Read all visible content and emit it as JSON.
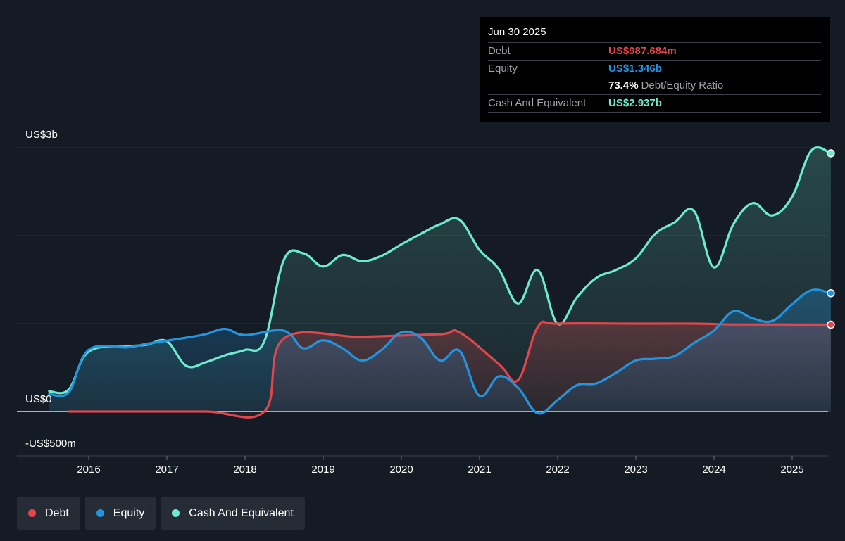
{
  "tooltip": {
    "date": "Jun 30 2025",
    "debt_label": "Debt",
    "debt_value": "US$987.684m",
    "equity_label": "Equity",
    "equity_value": "US$1.346b",
    "ratio_value": "73.4%",
    "ratio_label": "Debt/Equity Ratio",
    "cash_label": "Cash And Equivalent",
    "cash_value": "US$2.937b"
  },
  "y_labels": {
    "top": "US$3b",
    "zero": "US$0",
    "bottom": "-US$500m"
  },
  "legend": [
    {
      "label": "Debt",
      "color": "#e0464c"
    },
    {
      "label": "Equity",
      "color": "#2394df"
    },
    {
      "label": "Cash And Equivalent",
      "color": "#6cebd0"
    }
  ],
  "chart_data": {
    "type": "area",
    "x_ticks": [
      "2016",
      "2017",
      "2018",
      "2019",
      "2020",
      "2021",
      "2022",
      "2023",
      "2024",
      "2025"
    ],
    "y_range": [
      -500,
      3000
    ],
    "y_unit": "US$ m",
    "grid": true,
    "legend_position": "bottom-left",
    "series": [
      {
        "name": "Debt",
        "color": "#e0464c",
        "points": [
          [
            "2015-10-01",
            0
          ],
          [
            "2016-06-30",
            0
          ],
          [
            "2017-06-30",
            0
          ],
          [
            "2018-03-31",
            0
          ],
          [
            "2018-06-30",
            830
          ],
          [
            "2019-06-30",
            850
          ],
          [
            "2020-06-30",
            880
          ],
          [
            "2020-09-30",
            900
          ],
          [
            "2021-03-31",
            540
          ],
          [
            "2021-06-30",
            360
          ],
          [
            "2021-09-30",
            960
          ],
          [
            "2021-12-31",
            1000
          ],
          [
            "2022-12-31",
            1000
          ],
          [
            "2023-09-30",
            1000
          ],
          [
            "2024-03-31",
            990
          ],
          [
            "2024-09-30",
            990
          ],
          [
            "2025-06-30",
            988
          ]
        ]
      },
      {
        "name": "Equity",
        "color": "#2394df",
        "points": [
          [
            "2015-06-30",
            200
          ],
          [
            "2015-09-30",
            220
          ],
          [
            "2015-12-31",
            700
          ],
          [
            "2016-06-30",
            730
          ],
          [
            "2016-09-30",
            770
          ],
          [
            "2017-03-31",
            840
          ],
          [
            "2017-06-30",
            880
          ],
          [
            "2017-09-30",
            940
          ],
          [
            "2017-12-31",
            870
          ],
          [
            "2018-06-30",
            920
          ],
          [
            "2018-09-30",
            720
          ],
          [
            "2018-12-31",
            810
          ],
          [
            "2019-03-31",
            720
          ],
          [
            "2019-06-30",
            580
          ],
          [
            "2019-09-30",
            700
          ],
          [
            "2019-12-31",
            900
          ],
          [
            "2020-03-31",
            840
          ],
          [
            "2020-06-30",
            580
          ],
          [
            "2020-09-30",
            690
          ],
          [
            "2020-12-31",
            180
          ],
          [
            "2021-03-31",
            400
          ],
          [
            "2021-06-30",
            270
          ],
          [
            "2021-09-30",
            -20
          ],
          [
            "2021-12-31",
            130
          ],
          [
            "2022-03-31",
            300
          ],
          [
            "2022-06-30",
            320
          ],
          [
            "2022-09-30",
            440
          ],
          [
            "2022-12-31",
            580
          ],
          [
            "2023-03-31",
            600
          ],
          [
            "2023-06-30",
            630
          ],
          [
            "2023-09-30",
            780
          ],
          [
            "2023-12-31",
            920
          ],
          [
            "2024-03-31",
            1140
          ],
          [
            "2024-06-30",
            1060
          ],
          [
            "2024-09-30",
            1030
          ],
          [
            "2024-12-31",
            1220
          ],
          [
            "2025-03-31",
            1380
          ],
          [
            "2025-06-30",
            1346
          ]
        ]
      },
      {
        "name": "Cash And Equivalent",
        "color": "#6cebd0",
        "points": [
          [
            "2015-06-30",
            230
          ],
          [
            "2015-09-30",
            250
          ],
          [
            "2015-12-31",
            680
          ],
          [
            "2016-06-30",
            740
          ],
          [
            "2016-09-30",
            760
          ],
          [
            "2016-12-31",
            800
          ],
          [
            "2017-03-31",
            520
          ],
          [
            "2017-06-30",
            560
          ],
          [
            "2017-09-30",
            640
          ],
          [
            "2017-12-31",
            700
          ],
          [
            "2018-03-31",
            800
          ],
          [
            "2018-06-30",
            1720
          ],
          [
            "2018-09-30",
            1800
          ],
          [
            "2018-12-31",
            1650
          ],
          [
            "2019-03-31",
            1780
          ],
          [
            "2019-06-30",
            1710
          ],
          [
            "2019-09-30",
            1770
          ],
          [
            "2019-12-31",
            1900
          ],
          [
            "2020-03-31",
            2020
          ],
          [
            "2020-06-30",
            2130
          ],
          [
            "2020-09-30",
            2180
          ],
          [
            "2020-12-31",
            1840
          ],
          [
            "2021-03-31",
            1620
          ],
          [
            "2021-06-30",
            1230
          ],
          [
            "2021-09-30",
            1610
          ],
          [
            "2021-12-31",
            1000
          ],
          [
            "2022-03-31",
            1300
          ],
          [
            "2022-06-30",
            1520
          ],
          [
            "2022-09-30",
            1610
          ],
          [
            "2022-12-31",
            1740
          ],
          [
            "2023-03-31",
            2020
          ],
          [
            "2023-06-30",
            2150
          ],
          [
            "2023-09-30",
            2280
          ],
          [
            "2023-12-31",
            1640
          ],
          [
            "2024-03-31",
            2130
          ],
          [
            "2024-06-30",
            2370
          ],
          [
            "2024-09-30",
            2230
          ],
          [
            "2024-12-31",
            2440
          ],
          [
            "2025-03-31",
            2970
          ],
          [
            "2025-06-30",
            2937
          ]
        ]
      }
    ]
  }
}
